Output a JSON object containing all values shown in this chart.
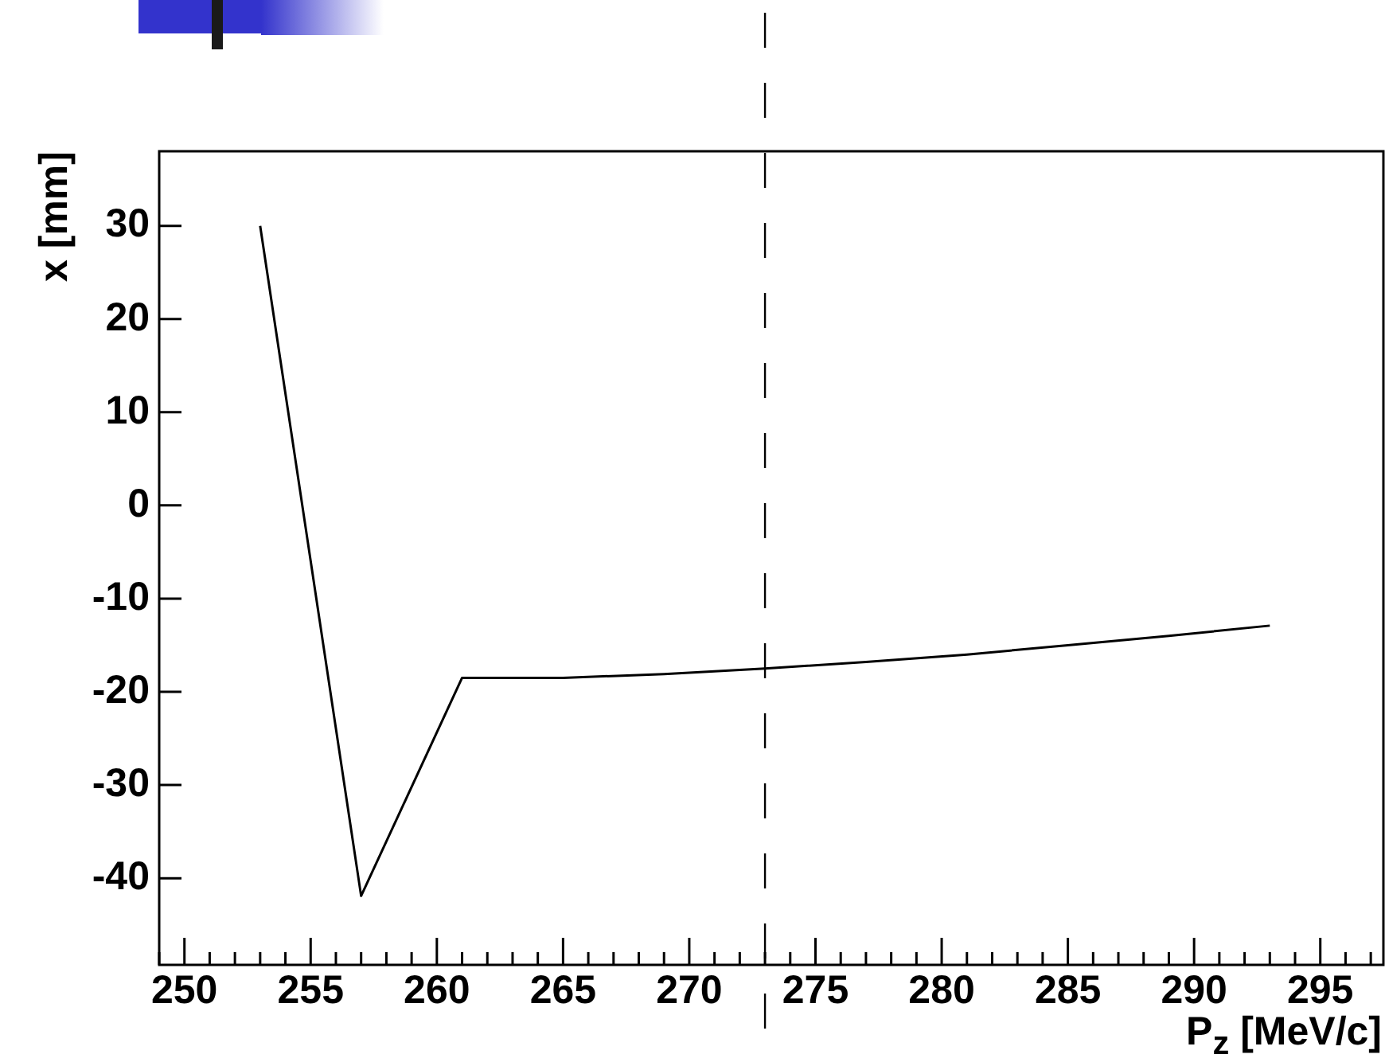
{
  "chart_data": {
    "type": "line",
    "xlabel": "P$_{z}$ [MeV/c]",
    "ylabel": "x [mm]",
    "x": [
      253,
      257,
      261,
      265,
      269,
      273,
      277,
      281,
      285,
      289,
      293
    ],
    "series": [
      {
        "color": "#000000",
        "values": [
          30,
          -41.9,
          -18.5,
          -18.5,
          -18.1,
          -17.5,
          -16.8,
          -16.0,
          -15.0,
          -14.0,
          -12.9
        ]
      }
    ],
    "xlim": [
      249,
      297.5
    ],
    "xticks": [
      {
        "value": 249,
        "label": null
      },
      250,
      {
        "value": 251,
        "label": null
      },
      {
        "value": 252,
        "label": null
      },
      {
        "value": 253,
        "label": null
      },
      {
        "value": 254,
        "label": null
      },
      255,
      {
        "value": 256,
        "label": null
      },
      {
        "value": 257,
        "label": null
      },
      {
        "value": 258,
        "label": null
      },
      {
        "value": 259,
        "label": null
      },
      260,
      {
        "value": 261,
        "label": null
      },
      {
        "value": 262,
        "label": null
      },
      {
        "value": 263,
        "label": null
      },
      {
        "value": 264,
        "label": null
      },
      265,
      {
        "value": 266,
        "label": null
      },
      {
        "value": 267,
        "label": null
      },
      {
        "value": 268,
        "label": null
      },
      {
        "value": 269,
        "label": null
      },
      270,
      {
        "value": 271,
        "label": null
      },
      {
        "value": 272,
        "label": null
      },
      {
        "value": 273,
        "label": null
      },
      {
        "value": 274,
        "label": null
      },
      275,
      {
        "value": 276,
        "label": null
      },
      {
        "value": 277,
        "label": null
      },
      {
        "value": 278,
        "label": null
      },
      {
        "value": 279,
        "label": null
      },
      280,
      {
        "value": 281,
        "label": null
      },
      {
        "value": 282,
        "label": null
      },
      {
        "value": 283,
        "label": null
      },
      {
        "value": 284,
        "label": null
      },
      285,
      {
        "value": 286,
        "label": null
      },
      {
        "value": 287,
        "label": null
      },
      {
        "value": 288,
        "label": null
      },
      {
        "value": 289,
        "label": null
      },
      290,
      {
        "value": 291,
        "label": null
      },
      {
        "value": 292,
        "label": null
      },
      {
        "value": 293,
        "label": null
      },
      {
        "value": 294,
        "label": null
      },
      295,
      {
        "value": 296,
        "label": null
      },
      {
        "value": 297,
        "label": null
      }
    ],
    "ylim": [
      -49.3,
      38
    ],
    "yticks": [
      -40,
      -30,
      -20,
      -10,
      0,
      10,
      20,
      30
    ],
    "ref_lines": [
      {
        "axis": "x",
        "value": 273,
        "line_style": "dashed",
        "color": "#000000"
      }
    ],
    "grid": false,
    "legend": false,
    "marker": "none",
    "line_style": "solid"
  }
}
